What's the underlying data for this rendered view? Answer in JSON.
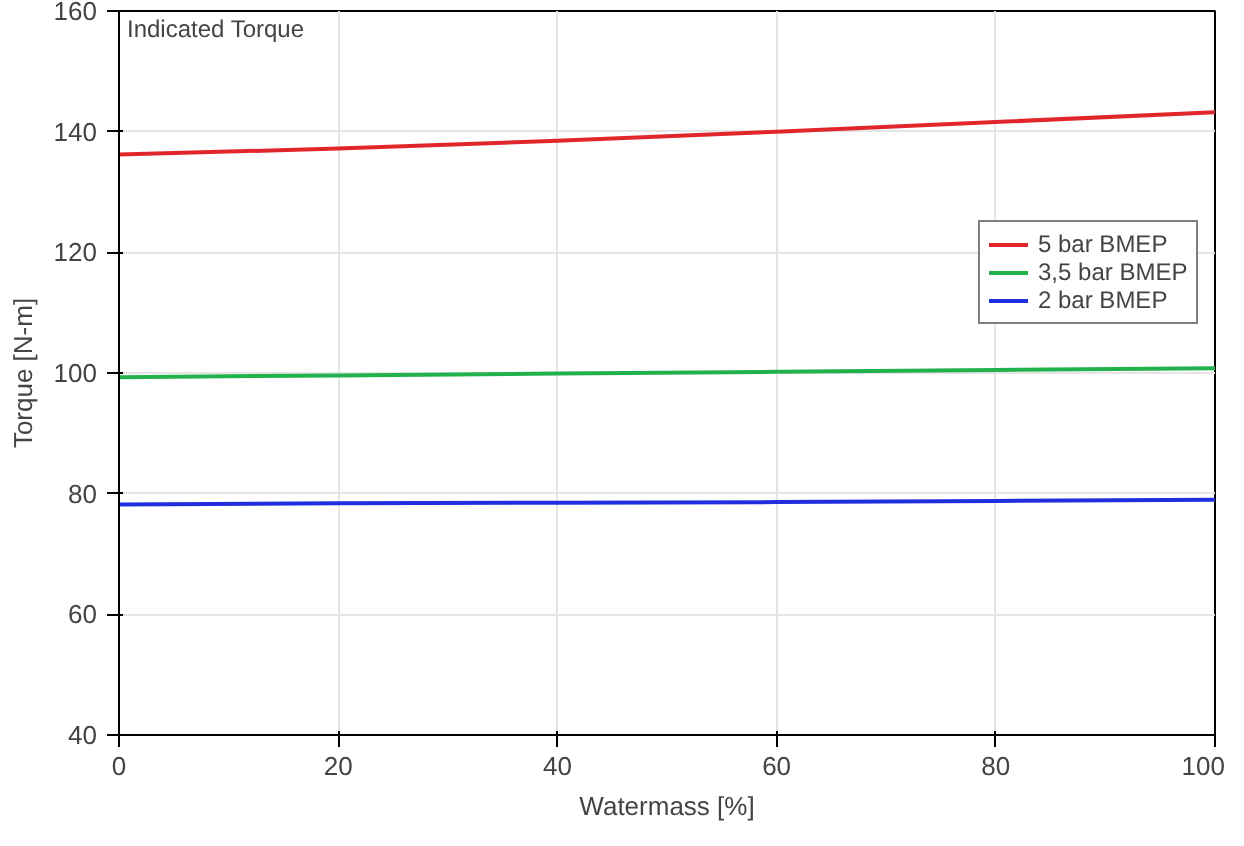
{
  "chart_data": {
    "type": "line",
    "title": "Indicated Torque",
    "xlabel": "Watermass [%]",
    "ylabel": "Torque [N-m]",
    "x": [
      0,
      20,
      40,
      60,
      80,
      100
    ],
    "series": [
      {
        "name": "5 bar BMEP",
        "color": "#e0262b",
        "values": [
          136.2,
          137.2,
          138.5,
          140,
          141.6,
          143.2
        ]
      },
      {
        "name": "3,5 bar BMEP",
        "color": "#22b24c",
        "values": [
          99.3,
          99.6,
          99.9,
          100.2,
          100.5,
          100.8
        ]
      },
      {
        "name": "2 bar BMEP",
        "color": "#1f2fe0",
        "values": [
          78.2,
          78.4,
          78.5,
          78.6,
          78.8,
          79.0
        ]
      }
    ],
    "xlim": [
      0,
      100
    ],
    "ylim": [
      40,
      160
    ],
    "xticks": [
      0,
      20,
      40,
      60,
      80,
      100
    ],
    "yticks": [
      40,
      60,
      80,
      100,
      120,
      140,
      160
    ],
    "grid": true,
    "legend": "right",
    "line_style": "solid"
  }
}
